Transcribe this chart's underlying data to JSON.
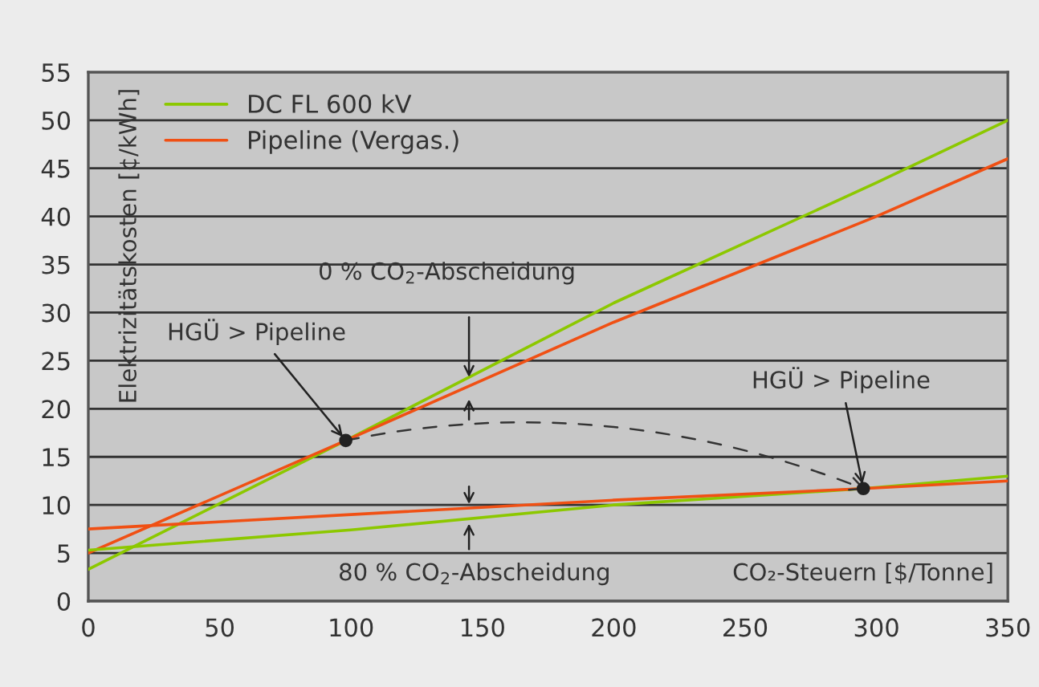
{
  "chart_data": {
    "type": "line",
    "xlabel": "CO₂-Steuern [$/Tonne]",
    "ylabel": "Elektrizitätskosten [¢/kWh]",
    "xlim": [
      0,
      350
    ],
    "xticks": [
      0,
      50,
      100,
      150,
      200,
      250,
      300,
      350
    ],
    "ylim": [
      0,
      55
    ],
    "yticks": [
      0,
      5,
      10,
      15,
      20,
      25,
      30,
      35,
      40,
      45,
      50,
      55
    ],
    "grid": "y",
    "legend": "top left",
    "series": [
      {
        "name": "DC FL 600 kV",
        "color": "#8cc800",
        "x": [
          0,
          98,
          200,
          300,
          350
        ],
        "values": [
          3.3,
          16.7,
          31,
          43.5,
          50
        ]
      },
      {
        "name": "Pipeline (Vergas.)",
        "color": "#f05014",
        "x": [
          0,
          98,
          200,
          300,
          350
        ],
        "values": [
          5,
          16.7,
          29,
          40,
          46
        ]
      },
      {
        "color": "#8cc800",
        "x": [
          0,
          100,
          200,
          295,
          350
        ],
        "values": [
          5.3,
          7.4,
          10,
          11.7,
          13
        ]
      },
      {
        "color": "#f05014",
        "x": [
          0,
          100,
          200,
          295,
          350
        ],
        "values": [
          7.5,
          9,
          10.5,
          11.7,
          12.5
        ]
      },
      {
        "type": "scatter",
        "color": "#222222",
        "x": [
          98,
          295
        ],
        "values": [
          16.7,
          11.7
        ]
      }
    ],
    "annotations": [
      {
        "text": "HGÜ > Pipeline",
        "x": 98,
        "y": 16.7
      },
      {
        "text": "HGÜ > Pipeline",
        "x": 295,
        "y": 11.7
      },
      "0 % CO$_{2}$-Abscheidung",
      "80 % CO$_{2}$-Abscheidung"
    ]
  }
}
